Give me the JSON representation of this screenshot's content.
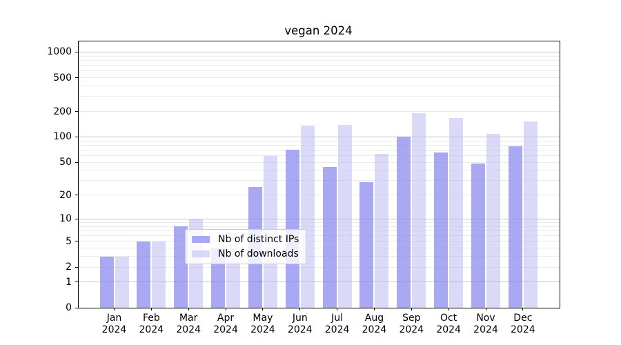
{
  "chart_data": {
    "type": "bar",
    "title": "vegan 2024",
    "categories": [
      "Jan 2024",
      "Feb 2024",
      "Mar 2024",
      "Apr 2024",
      "May 2024",
      "Jun 2024",
      "Jul 2024",
      "Aug 2024",
      "Sep 2024",
      "Oct 2024",
      "Nov 2024",
      "Dec 2024"
    ],
    "series": [
      {
        "name": "Nb of distinct IPs",
        "color": "rgba(136,136,238,0.72)",
        "values": [
          3,
          5,
          8,
          4,
          25,
          70,
          44,
          29,
          100,
          65,
          48,
          78
        ]
      },
      {
        "name": "Nb of downloads",
        "color": "rgba(187,187,242,0.55)",
        "values": [
          3,
          5,
          10,
          4,
          60,
          137,
          140,
          63,
          190,
          168,
          108,
          152
        ]
      }
    ],
    "yscale": "log10(1+x)",
    "ylim": [
      0,
      1320
    ],
    "y_ticks": [
      0,
      1,
      2,
      5,
      10,
      20,
      50,
      100,
      200,
      500,
      1000
    ],
    "y_tick_labels": [
      "0",
      "1",
      "2",
      "5",
      "10",
      "20",
      "50",
      "100",
      "200",
      "500",
      "1000"
    ],
    "major_gridlines": [
      1,
      10,
      100,
      1000
    ],
    "minor_gridlines": [
      2,
      3,
      4,
      5,
      6,
      7,
      8,
      9,
      20,
      30,
      40,
      50,
      60,
      70,
      80,
      90,
      200,
      300,
      400,
      500,
      600,
      700,
      800,
      900
    ],
    "grid": true,
    "legend": {
      "position": "lower-center",
      "entries": [
        "Nb of distinct IPs",
        "Nb of downloads"
      ]
    }
  },
  "colors": {
    "bar_dark": "rgba(136,136,238,0.72)",
    "bar_light": "rgba(187,187,242,0.55)",
    "minor_grid": "#ebebeb",
    "major_grid": "#c3c3c3",
    "spine": "#000000",
    "text": "#000000",
    "legend_border": "#cccccc",
    "legend_bg": "rgba(255,255,255,0.8)"
  }
}
